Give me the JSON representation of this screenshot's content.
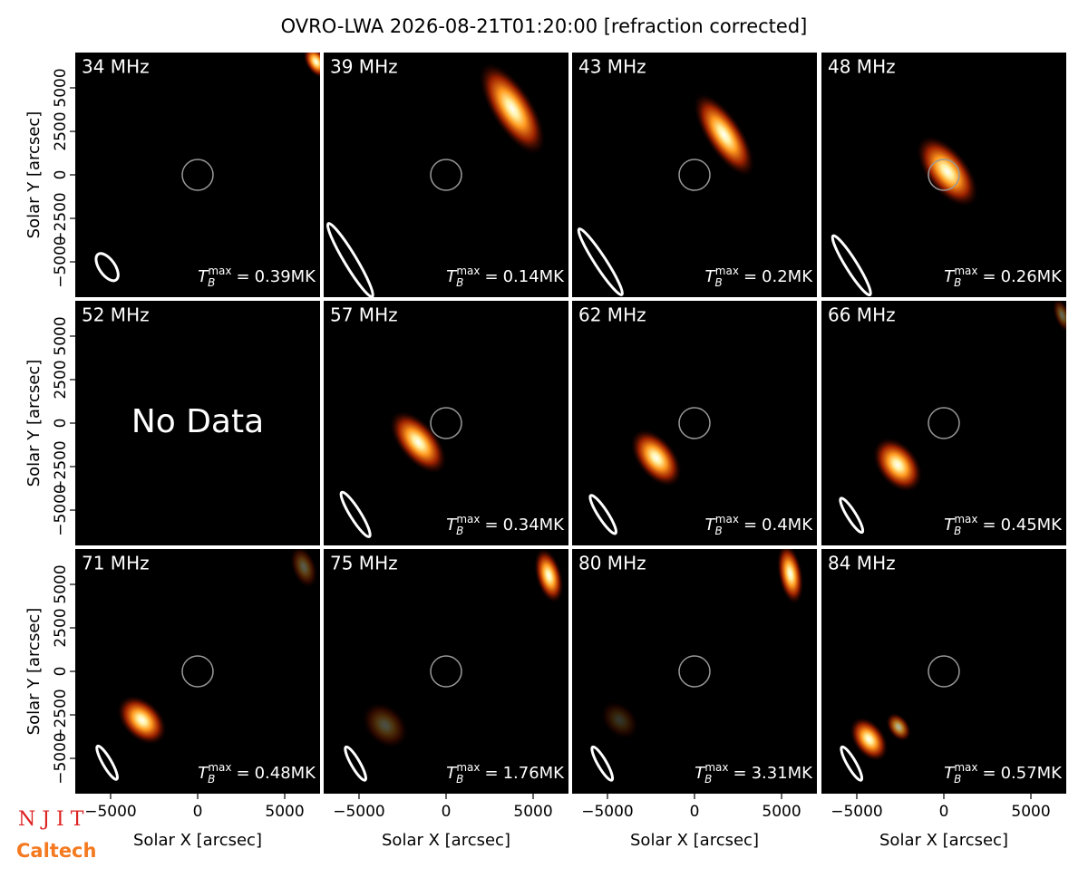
{
  "chart_data": {
    "type": "image-grid",
    "title": "OVRO-LWA 2026-08-21T01:20:00 [refraction corrected]",
    "xlabel": "Solar X [arcsec]",
    "ylabel": "Solar Y [arcsec]",
    "xlim": [
      -7030,
      7030
    ],
    "ylim": [
      -7030,
      7030
    ],
    "xticks": [
      {
        "value": -5000,
        "label": "−5000"
      },
      0,
      5000
    ],
    "yticks": [
      {
        "value": -5000,
        "label": "−5000"
      },
      {
        "value": -2500,
        "label": "−2500"
      },
      0,
      2500,
      5000
    ],
    "tmax_symbol": {
      "base": "T",
      "sub": "B",
      "sup": "max",
      "relation": "="
    },
    "panels": [
      {
        "freq": "34 MHz",
        "tmax_label": "0.39MK",
        "sources": [
          {
            "x": 6800,
            "y": 6500,
            "major": 2000,
            "minor": 1200,
            "angle": 60,
            "peak": 1
          }
        ],
        "beam": {
          "x": -5200,
          "y": -5300,
          "major": 1800,
          "minor": 900,
          "angle": 55
        }
      },
      {
        "freq": "39 MHz",
        "tmax_label": "0.14MK",
        "sources": [
          {
            "x": 3800,
            "y": 3800,
            "major": 6000,
            "minor": 2400,
            "angle": 58,
            "peak": 1
          }
        ],
        "beam": {
          "x": -5500,
          "y": -4900,
          "major": 4900,
          "minor": 700,
          "angle": 59
        }
      },
      {
        "freq": "43 MHz",
        "tmax_label": "0.2MK",
        "sources": [
          {
            "x": 1700,
            "y": 2300,
            "major": 5500,
            "minor": 2100,
            "angle": 57,
            "peak": 1
          }
        ],
        "beam": {
          "x": -5400,
          "y": -5000,
          "major": 4500,
          "minor": 650,
          "angle": 57
        }
      },
      {
        "freq": "48 MHz",
        "tmax_label": "0.26MK",
        "sources": [
          {
            "x": 200,
            "y": 200,
            "major": 4800,
            "minor": 2400,
            "angle": 52,
            "peak": 1
          }
        ],
        "beam": {
          "x": -5300,
          "y": -5200,
          "major": 4000,
          "minor": 650,
          "angle": 58
        }
      },
      {
        "freq": "52 MHz",
        "note": "No Data"
      },
      {
        "freq": "57 MHz",
        "tmax_label": "0.34MK",
        "sources": [
          {
            "x": -1600,
            "y": -1100,
            "major": 4300,
            "minor": 2200,
            "angle": 50,
            "peak": 1
          }
        ],
        "beam": {
          "x": -5200,
          "y": -5250,
          "major": 3000,
          "minor": 600,
          "angle": 58
        }
      },
      {
        "freq": "62 MHz",
        "tmax_label": "0.4MK",
        "sources": [
          {
            "x": -2200,
            "y": -2000,
            "major": 3800,
            "minor": 2200,
            "angle": 52,
            "peak": 1
          }
        ],
        "beam": {
          "x": -5250,
          "y": -5250,
          "major": 2600,
          "minor": 550,
          "angle": 57
        }
      },
      {
        "freq": "66 MHz",
        "tmax_label": "0.45MK",
        "sources": [
          {
            "x": -2650,
            "y": -2400,
            "major": 3500,
            "minor": 2300,
            "angle": 52,
            "peak": 1
          },
          {
            "x": 6800,
            "y": 6200,
            "major": 2000,
            "minor": 900,
            "angle": 70,
            "peak": 0.4
          }
        ],
        "beam": {
          "x": -5300,
          "y": -5300,
          "major": 2300,
          "minor": 500,
          "angle": 58
        }
      },
      {
        "freq": "71 MHz",
        "tmax_label": "0.48MK",
        "sources": [
          {
            "x": -3200,
            "y": -2800,
            "major": 3300,
            "minor": 2200,
            "angle": 45,
            "peak": 1
          },
          {
            "x": 6100,
            "y": 6000,
            "major": 2500,
            "minor": 1400,
            "angle": 70,
            "peak": 0.35
          }
        ],
        "beam": {
          "x": -5200,
          "y": -5250,
          "major": 2200,
          "minor": 500,
          "angle": 60
        }
      },
      {
        "freq": "75 MHz",
        "tmax_label": "1.76MK",
        "sources": [
          {
            "x": 5900,
            "y": 5500,
            "major": 3200,
            "minor": 1500,
            "angle": 75,
            "peak": 1
          },
          {
            "x": -3500,
            "y": -3100,
            "major": 3000,
            "minor": 2200,
            "angle": 45,
            "peak": 0.3
          }
        ],
        "beam": {
          "x": -5200,
          "y": -5300,
          "major": 2200,
          "minor": 500,
          "angle": 60
        }
      },
      {
        "freq": "80 MHz",
        "tmax_label": "3.31MK",
        "sources": [
          {
            "x": 5500,
            "y": 5600,
            "major": 3500,
            "minor": 1400,
            "angle": 80,
            "peak": 1
          },
          {
            "x": -4300,
            "y": -2800,
            "major": 2500,
            "minor": 1800,
            "angle": 45,
            "peak": 0.2
          }
        ],
        "beam": {
          "x": -5300,
          "y": -5300,
          "major": 2200,
          "minor": 500,
          "angle": 60
        }
      },
      {
        "freq": "84 MHz",
        "tmax_label": "0.57MK",
        "sources": [
          {
            "x": -4300,
            "y": -3900,
            "major": 2800,
            "minor": 1800,
            "angle": 55,
            "peak": 1
          },
          {
            "x": -2600,
            "y": -3200,
            "major": 1800,
            "minor": 1200,
            "angle": 55,
            "peak": 0.7
          }
        ],
        "beam": {
          "x": -5300,
          "y": -5300,
          "major": 2200,
          "minor": 500,
          "angle": 60
        }
      }
    ],
    "logos": {
      "njit": "N J I T",
      "caltech": "Caltech"
    }
  }
}
